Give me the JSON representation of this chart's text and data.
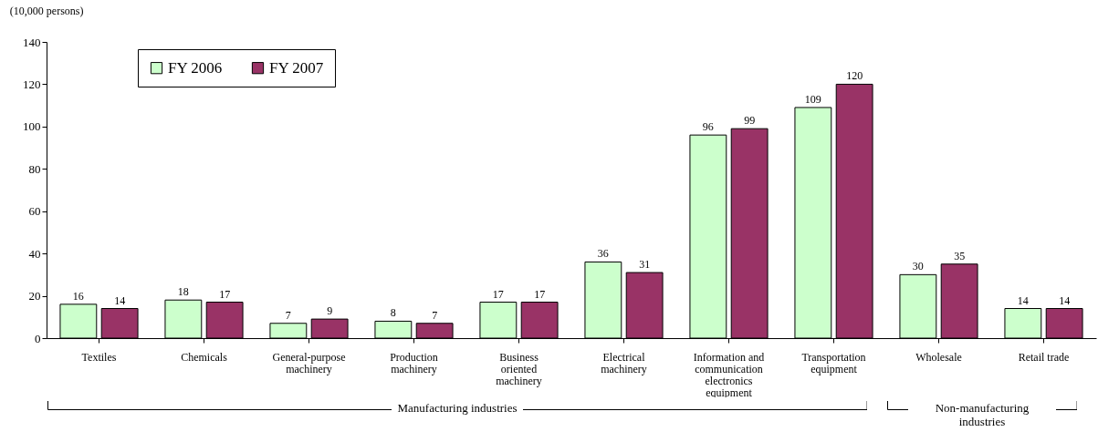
{
  "chart_data": {
    "type": "bar",
    "ylabel": "(10,000 persons)",
    "categories": [
      "Textiles",
      "Chemicals",
      "General-purpose machinery",
      "Production machinery",
      "Business oriented machinery",
      "Electrical machinery",
      "Information and communication electronics equipment",
      "Transportation equipment",
      "Wholesale",
      "Retail trade"
    ],
    "series": [
      {
        "name": "FY 2006",
        "color": "#ccffcc",
        "values": [
          16,
          18,
          7,
          8,
          17,
          36,
          96,
          109,
          30,
          14
        ]
      },
      {
        "name": "FY 2007",
        "color": "#993366",
        "values": [
          14,
          17,
          9,
          7,
          17,
          31,
          99,
          120,
          35,
          14
        ]
      }
    ],
    "ylim": [
      0,
      140
    ],
    "yticks": [
      0,
      20,
      40,
      60,
      80,
      100,
      120,
      140
    ],
    "data_labels": true,
    "legend": "top left",
    "grid": false,
    "annotations": [
      "Manufacturing industries",
      "Non-manufacturing industries"
    ]
  }
}
